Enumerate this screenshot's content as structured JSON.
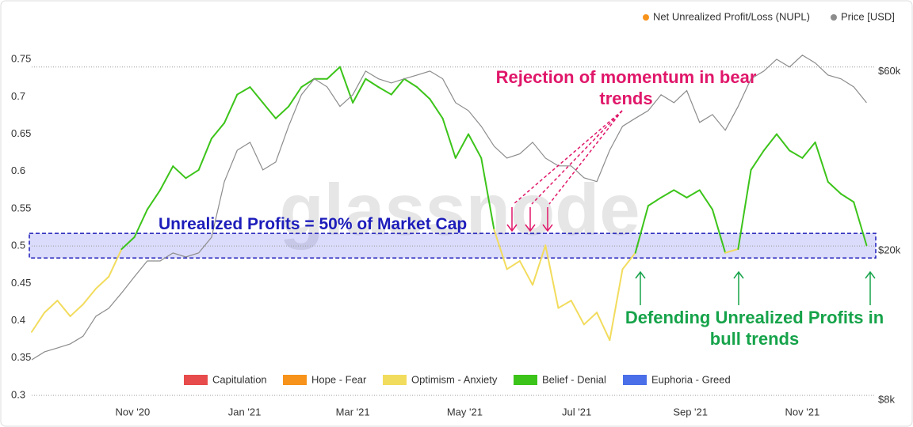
{
  "chart_data": {
    "type": "line",
    "watermark": "glassnode",
    "x": [
      "2020-09-07",
      "2020-09-14",
      "2020-09-21",
      "2020-09-28",
      "2020-10-05",
      "2020-10-12",
      "2020-10-19",
      "2020-10-26",
      "2020-11-02",
      "2020-11-09",
      "2020-11-16",
      "2020-11-23",
      "2020-11-30",
      "2020-12-07",
      "2020-12-14",
      "2020-12-21",
      "2020-12-28",
      "2021-01-04",
      "2021-01-11",
      "2021-01-18",
      "2021-01-25",
      "2021-02-01",
      "2021-02-08",
      "2021-02-15",
      "2021-02-22",
      "2021-03-01",
      "2021-03-08",
      "2021-03-15",
      "2021-03-22",
      "2021-03-29",
      "2021-04-05",
      "2021-04-12",
      "2021-04-19",
      "2021-04-26",
      "2021-05-03",
      "2021-05-10",
      "2021-05-17",
      "2021-05-24",
      "2021-05-31",
      "2021-06-07",
      "2021-06-14",
      "2021-06-21",
      "2021-06-28",
      "2021-07-05",
      "2021-07-12",
      "2021-07-19",
      "2021-07-26",
      "2021-08-02",
      "2021-08-09",
      "2021-08-16",
      "2021-08-23",
      "2021-08-30",
      "2021-09-06",
      "2021-09-13",
      "2021-09-20",
      "2021-09-27",
      "2021-10-04",
      "2021-10-11",
      "2021-10-18",
      "2021-10-25",
      "2021-11-01",
      "2021-11-08",
      "2021-11-15",
      "2021-11-22",
      "2021-11-29",
      "2021-12-06"
    ],
    "xlim": [
      "2020-09-07",
      "2021-12-11"
    ],
    "xticks": [
      {
        "value": "2020-11-01",
        "label": "Nov '20"
      },
      {
        "value": "2021-01-01",
        "label": "Jan '21"
      },
      {
        "value": "2021-03-01",
        "label": "Mar '21"
      },
      {
        "value": "2021-05-01",
        "label": "May '21"
      },
      {
        "value": "2021-07-01",
        "label": "Jul '21"
      },
      {
        "value": "2021-09-01",
        "label": "Sep '21"
      },
      {
        "value": "2021-11-01",
        "label": "Nov '21"
      }
    ],
    "ylim": [
      0.3,
      0.8
    ],
    "yticks": [
      0.3,
      0.35,
      0.4,
      0.45,
      0.5,
      0.55,
      0.6,
      0.65,
      0.7,
      0.75
    ],
    "y2lim": [
      8000,
      79000
    ],
    "y2log": true,
    "y2ticks": [
      {
        "value": 8000,
        "label": "$8k"
      },
      {
        "value": 20000,
        "label": "$20k"
      },
      {
        "value": 60000,
        "label": "$60k"
      }
    ],
    "series": [
      {
        "name": "Net Unrealized Profit/Loss (NUPL)",
        "color": "#f7931a",
        "axis": "y",
        "colored_by_zone": true,
        "values": [
          0.385,
          0.411,
          0.427,
          0.406,
          0.422,
          0.443,
          0.459,
          0.496,
          0.512,
          0.549,
          0.575,
          0.607,
          0.591,
          0.602,
          0.644,
          0.665,
          0.703,
          0.713,
          0.692,
          0.671,
          0.687,
          0.713,
          0.724,
          0.724,
          0.74,
          0.692,
          0.724,
          0.713,
          0.703,
          0.724,
          0.713,
          0.697,
          0.671,
          0.618,
          0.65,
          0.618,
          0.522,
          0.469,
          0.48,
          0.448,
          0.501,
          0.417,
          0.427,
          0.395,
          0.411,
          0.374,
          0.469,
          0.491,
          0.554,
          0.565,
          0.575,
          0.565,
          0.575,
          0.549,
          0.491,
          0.496,
          0.602,
          0.628,
          0.65,
          0.628,
          0.618,
          0.639,
          0.586,
          0.57,
          0.559,
          0.501
        ]
      },
      {
        "name": "Price [USD]",
        "color": "#8c8c8c",
        "axis": "y2",
        "values": [
          9950,
          10450,
          10700,
          10970,
          11500,
          13000,
          13650,
          15000,
          16570,
          18250,
          18250,
          19170,
          18700,
          19170,
          21100,
          29700,
          36000,
          37800,
          31900,
          33500,
          41700,
          50600,
          55800,
          53100,
          47100,
          50600,
          58500,
          55800,
          54400,
          55800,
          57100,
          58500,
          55800,
          48200,
          45900,
          41700,
          36900,
          34300,
          35200,
          37800,
          34300,
          32700,
          32700,
          30400,
          29700,
          36000,
          41700,
          43800,
          45900,
          50600,
          48200,
          51900,
          42700,
          44800,
          40700,
          47100,
          55800,
          58500,
          62900,
          60000,
          64500,
          61500,
          57100,
          55800,
          53100,
          48200
        ]
      }
    ],
    "zones": [
      {
        "name": "Capitulation",
        "color": "#e84b4b"
      },
      {
        "name": "Hope - Fear",
        "color": "#f7931a",
        "min": 0
      },
      {
        "name": "Optimism - Anxiety",
        "color": "#f2dc5d",
        "min": 0.25
      },
      {
        "name": "Belief - Denial",
        "color": "#3cc41a",
        "min": 0.5
      },
      {
        "name": "Euphoria - Greed",
        "color": "#4a6fe8",
        "min": 0.75
      }
    ],
    "band": {
      "range": [
        0.484,
        0.517
      ],
      "label": "Unrealized Profits = 50% of Market Cap",
      "color": "#1d1dbb"
    },
    "annotations": [
      {
        "text": "Rejection of momentum in bear trends",
        "color": "#e0176a"
      },
      {
        "text": "Defending Unrealized Profits in bull trends",
        "color": "#16a34a"
      }
    ]
  }
}
